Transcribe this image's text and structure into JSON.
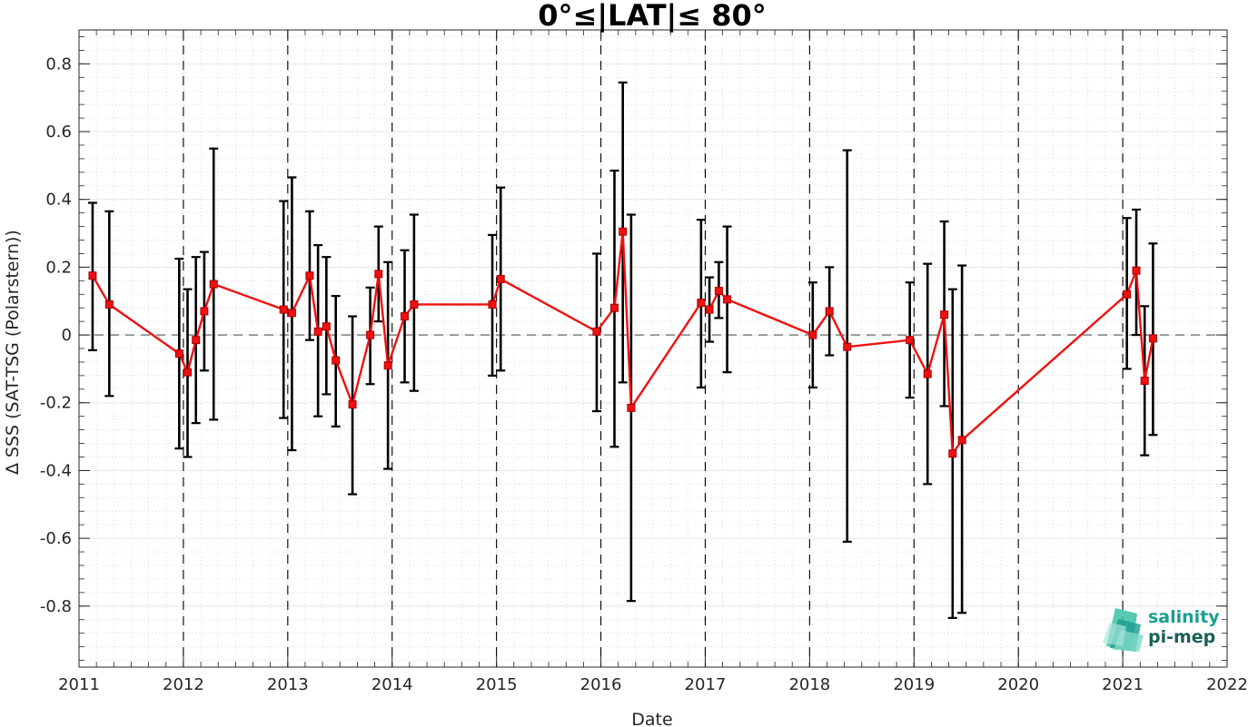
{
  "chart_data": {
    "type": "line",
    "title": "0°≤|LAT|≤ 80°",
    "xlabel": "Date",
    "ylabel": "∆ SSS (SAT-TSG (Polarstern))",
    "xlim": [
      2011,
      2022
    ],
    "ylim": [
      -0.98,
      0.9
    ],
    "x_ticks": [
      2011,
      2012,
      2013,
      2014,
      2015,
      2016,
      2017,
      2018,
      2019,
      2020,
      2021,
      2022
    ],
    "x_tick_labels": [
      "2011",
      "2012",
      "2013",
      "2014",
      "2015",
      "2016",
      "2017",
      "2018",
      "2019",
      "2020",
      "2021",
      "2022"
    ],
    "y_ticks": [
      -0.8,
      -0.6,
      -0.4,
      -0.2,
      0,
      0.2,
      0.4,
      0.6,
      0.8
    ],
    "y_tick_labels": [
      "-0.8",
      "-0.6",
      "-0.4",
      "-0.2",
      "0",
      "0.2",
      "0.4",
      "0.6",
      "0.8"
    ],
    "vertical_dashed_lines_at": [
      2012,
      2013,
      2014,
      2015,
      2016,
      2017,
      2018,
      2019,
      2020,
      2021
    ],
    "zero_line": true,
    "grid": true,
    "minor_grid": true,
    "series": [
      {
        "color": "#ee1111",
        "errorbar_color": "#000000",
        "marker": "square",
        "points": [
          {
            "x": 2011.13,
            "y": 0.175,
            "lo": -0.045,
            "hi": 0.39
          },
          {
            "x": 2011.29,
            "y": 0.09,
            "lo": -0.18,
            "hi": 0.365
          },
          {
            "x": 2011.96,
            "y": -0.055,
            "lo": -0.335,
            "hi": 0.225
          },
          {
            "x": 2012.04,
            "y": -0.11,
            "lo": -0.36,
            "hi": 0.135
          },
          {
            "x": 2012.12,
            "y": -0.015,
            "lo": -0.26,
            "hi": 0.23
          },
          {
            "x": 2012.2,
            "y": 0.07,
            "lo": -0.105,
            "hi": 0.245
          },
          {
            "x": 2012.29,
            "y": 0.15,
            "lo": -0.25,
            "hi": 0.55
          },
          {
            "x": 2012.96,
            "y": 0.075,
            "lo": -0.245,
            "hi": 0.395
          },
          {
            "x": 2013.04,
            "y": 0.065,
            "lo": -0.34,
            "hi": 0.465
          },
          {
            "x": 2013.21,
            "y": 0.175,
            "lo": -0.015,
            "hi": 0.365
          },
          {
            "x": 2013.29,
            "y": 0.01,
            "lo": -0.24,
            "hi": 0.265
          },
          {
            "x": 2013.37,
            "y": 0.025,
            "lo": -0.175,
            "hi": 0.23
          },
          {
            "x": 2013.46,
            "y": -0.075,
            "lo": -0.27,
            "hi": 0.115
          },
          {
            "x": 2013.62,
            "y": -0.205,
            "lo": -0.47,
            "hi": 0.055
          },
          {
            "x": 2013.79,
            "y": 0.0,
            "lo": -0.145,
            "hi": 0.14
          },
          {
            "x": 2013.87,
            "y": 0.18,
            "lo": 0.04,
            "hi": 0.32
          },
          {
            "x": 2013.96,
            "y": -0.09,
            "lo": -0.395,
            "hi": 0.215
          },
          {
            "x": 2014.12,
            "y": 0.055,
            "lo": -0.14,
            "hi": 0.25
          },
          {
            "x": 2014.21,
            "y": 0.09,
            "lo": -0.165,
            "hi": 0.355
          },
          {
            "x": 2014.96,
            "y": 0.09,
            "lo": -0.12,
            "hi": 0.295
          },
          {
            "x": 2015.04,
            "y": 0.165,
            "lo": -0.105,
            "hi": 0.435
          },
          {
            "x": 2015.96,
            "y": 0.01,
            "lo": -0.225,
            "hi": 0.24
          },
          {
            "x": 2016.13,
            "y": 0.08,
            "lo": -0.33,
            "hi": 0.485
          },
          {
            "x": 2016.21,
            "y": 0.305,
            "lo": -0.14,
            "hi": 0.745
          },
          {
            "x": 2016.29,
            "y": -0.215,
            "lo": -0.785,
            "hi": 0.355
          },
          {
            "x": 2016.96,
            "y": 0.095,
            "lo": -0.155,
            "hi": 0.34
          },
          {
            "x": 2017.04,
            "y": 0.075,
            "lo": -0.02,
            "hi": 0.17
          },
          {
            "x": 2017.13,
            "y": 0.13,
            "lo": 0.05,
            "hi": 0.215
          },
          {
            "x": 2017.21,
            "y": 0.105,
            "lo": -0.11,
            "hi": 0.32
          },
          {
            "x": 2018.03,
            "y": 0.0,
            "lo": -0.155,
            "hi": 0.155
          },
          {
            "x": 2018.19,
            "y": 0.07,
            "lo": -0.06,
            "hi": 0.2
          },
          {
            "x": 2018.36,
            "y": -0.035,
            "lo": -0.61,
            "hi": 0.545
          },
          {
            "x": 2018.96,
            "y": -0.015,
            "lo": -0.185,
            "hi": 0.155
          },
          {
            "x": 2019.13,
            "y": -0.115,
            "lo": -0.44,
            "hi": 0.21
          },
          {
            "x": 2019.29,
            "y": 0.06,
            "lo": -0.21,
            "hi": 0.335
          },
          {
            "x": 2019.37,
            "y": -0.35,
            "lo": -0.835,
            "hi": 0.135
          },
          {
            "x": 2019.46,
            "y": -0.31,
            "lo": -0.82,
            "hi": 0.205
          },
          {
            "x": 2021.04,
            "y": 0.12,
            "lo": -0.1,
            "hi": 0.345
          },
          {
            "x": 2021.13,
            "y": 0.19,
            "lo": 0.0,
            "hi": 0.37
          },
          {
            "x": 2021.21,
            "y": -0.135,
            "lo": -0.355,
            "hi": 0.085
          },
          {
            "x": 2021.29,
            "y": -0.01,
            "lo": -0.295,
            "hi": 0.27
          }
        ]
      }
    ]
  },
  "logo": {
    "line1": "salinity",
    "line2": "pi-mep",
    "color": "#1a9e8f"
  }
}
